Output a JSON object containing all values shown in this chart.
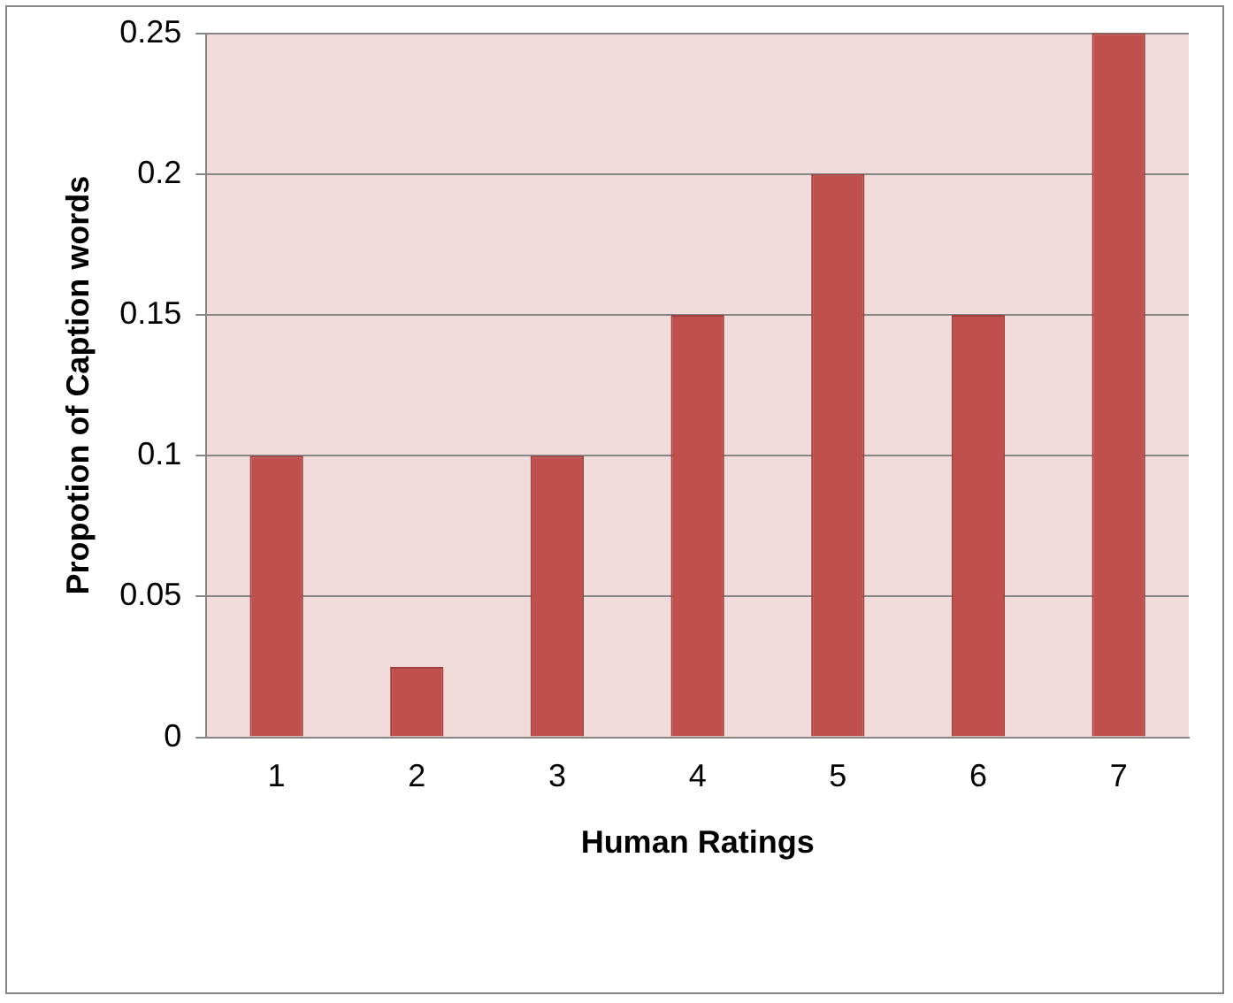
{
  "chart_data": {
    "type": "bar",
    "xlabel": "Human Ratings",
    "ylabel": "Propotion of Caption words",
    "categories": [
      "1",
      "2",
      "3",
      "4",
      "5",
      "6",
      "7"
    ],
    "values": [
      0.1,
      0.025,
      0.1,
      0.15,
      0.2,
      0.15,
      0.25
    ],
    "color": "#c0504d",
    "ylim": [
      0,
      0.25
    ],
    "yticks": [
      0,
      0.05,
      0.1,
      0.15,
      0.2,
      0.25
    ],
    "grid": "y",
    "legend": false
  }
}
